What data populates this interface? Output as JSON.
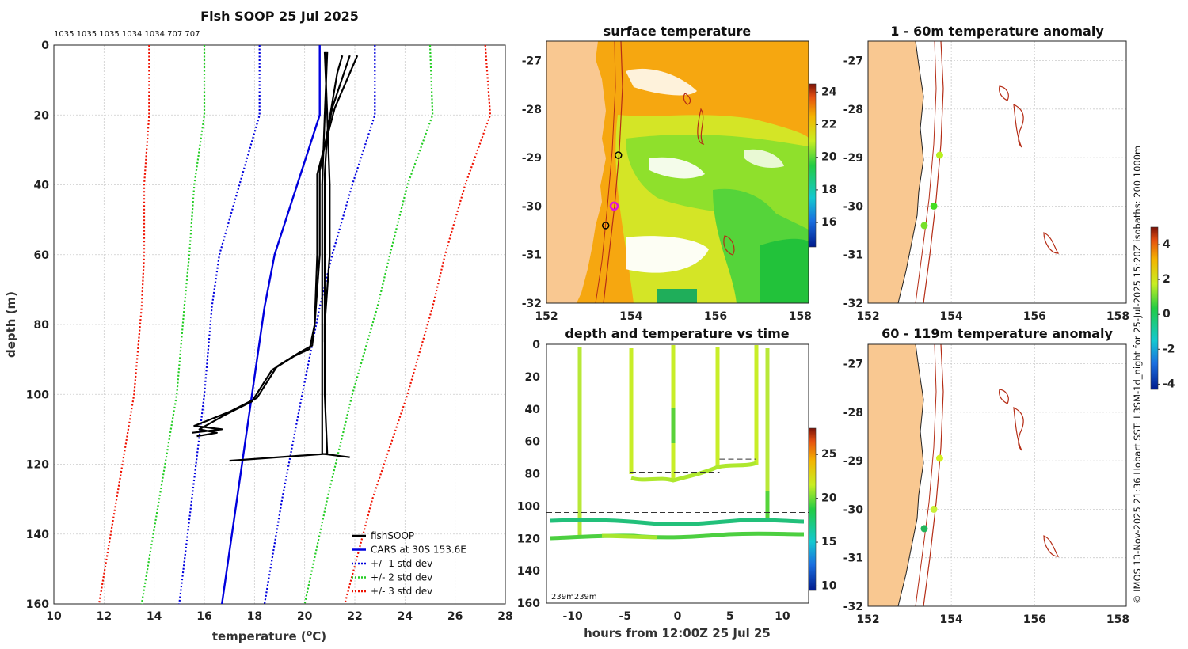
{
  "chart_data": [
    {
      "id": "profile",
      "type": "line",
      "title": "Fish SOOP 25 Jul 2025",
      "top_labels": "1035 1035 1035 1034 1034 707 707",
      "xlabel": "temperature (",
      "xlabel_sup": "o",
      "xlabel_end": "C)",
      "ylabel": "depth (m)",
      "xlim": [
        10,
        28
      ],
      "ylim": [
        0,
        160
      ],
      "xticks": [
        "10",
        "12",
        "14",
        "16",
        "18",
        "20",
        "22",
        "24",
        "26",
        "28"
      ],
      "yticks": [
        "0",
        "20",
        "40",
        "60",
        "80",
        "100",
        "120",
        "140",
        "160"
      ],
      "legend": [
        {
          "label": "fishSOOP",
          "color": "#000000",
          "style": "solid"
        },
        {
          "label": "CARS at 30S 153.6E",
          "color": "#0000dd",
          "style": "solid"
        },
        {
          "label": "+/- 1 std dev",
          "color": "#0000dd",
          "style": "dotted"
        },
        {
          "label": "+/- 2 std dev",
          "color": "#22cc22",
          "style": "dotted"
        },
        {
          "label": "+/- 3 std dev",
          "color": "#ee1100",
          "style": "dotted"
        }
      ],
      "series": [
        {
          "name": "CARS mean",
          "color": "#0000dd",
          "dash": "",
          "width": 2.4,
          "points": [
            [
              20.6,
              0
            ],
            [
              20.6,
              20
            ],
            [
              19.7,
              40
            ],
            [
              18.8,
              60
            ],
            [
              18.4,
              75
            ],
            [
              17.9,
              100
            ],
            [
              17.3,
              130
            ],
            [
              16.7,
              160
            ]
          ]
        },
        {
          "name": "+1 std",
          "color": "#0000dd",
          "dash": "2,2.5",
          "width": 2.2,
          "points": [
            [
              22.8,
              0
            ],
            [
              22.8,
              20
            ],
            [
              21.9,
              40
            ],
            [
              21.1,
              60
            ],
            [
              20.6,
              75
            ],
            [
              19.9,
              100
            ],
            [
              19.1,
              130
            ],
            [
              18.4,
              160
            ]
          ]
        },
        {
          "name": "-1 std",
          "color": "#0000dd",
          "dash": "2,2.5",
          "width": 2.2,
          "points": [
            [
              18.2,
              0
            ],
            [
              18.2,
              20
            ],
            [
              17.4,
              40
            ],
            [
              16.6,
              60
            ],
            [
              16.3,
              75
            ],
            [
              16.0,
              100
            ],
            [
              15.5,
              130
            ],
            [
              15.0,
              160
            ]
          ]
        },
        {
          "name": "+2 std",
          "color": "#22cc22",
          "dash": "2,2.5",
          "width": 2.2,
          "points": [
            [
              25.0,
              0
            ],
            [
              25.1,
              20
            ],
            [
              24.1,
              40
            ],
            [
              23.4,
              60
            ],
            [
              22.9,
              75
            ],
            [
              21.9,
              100
            ],
            [
              20.9,
              130
            ],
            [
              20.0,
              160
            ]
          ]
        },
        {
          "name": "-2 std",
          "color": "#22cc22",
          "dash": "2,2.5",
          "width": 2.2,
          "points": [
            [
              16.0,
              0
            ],
            [
              16.0,
              20
            ],
            [
              15.6,
              40
            ],
            [
              15.4,
              60
            ],
            [
              15.2,
              75
            ],
            [
              14.9,
              100
            ],
            [
              14.2,
              130
            ],
            [
              13.5,
              160
            ]
          ]
        },
        {
          "name": "+3 std",
          "color": "#ee1100",
          "dash": "2,2.5",
          "width": 2.2,
          "points": [
            [
              27.2,
              0
            ],
            [
              27.4,
              20
            ],
            [
              26.4,
              40
            ],
            [
              25.6,
              60
            ],
            [
              25.1,
              75
            ],
            [
              24.1,
              100
            ],
            [
              22.7,
              130
            ],
            [
              21.6,
              160
            ]
          ]
        },
        {
          "name": "-3 std",
          "color": "#ee1100",
          "dash": "2,2.5",
          "width": 2.2,
          "points": [
            [
              13.8,
              0
            ],
            [
              13.8,
              20
            ],
            [
              13.6,
              40
            ],
            [
              13.6,
              60
            ],
            [
              13.5,
              75
            ],
            [
              13.2,
              100
            ],
            [
              12.5,
              130
            ],
            [
              11.8,
              160
            ]
          ]
        },
        {
          "name": "fishSOOP cast 1",
          "color": "#000000",
          "dash": "",
          "width": 2.2,
          "points": [
            [
              21.5,
              3
            ],
            [
              21.3,
              8
            ],
            [
              20.9,
              25
            ],
            [
              20.8,
              37
            ],
            [
              20.8,
              60
            ],
            [
              20.8,
              80
            ],
            [
              20.8,
              100
            ],
            [
              20.9,
              117
            ],
            [
              17.0,
              119
            ]
          ]
        },
        {
          "name": "fishSOOP cast 2",
          "color": "#000000",
          "dash": "",
          "width": 2.2,
          "points": [
            [
              20.9,
              2
            ],
            [
              20.8,
              20
            ],
            [
              20.7,
              40
            ],
            [
              20.7,
              70
            ],
            [
              20.7,
              85
            ],
            [
              20.7,
              105
            ],
            [
              20.7,
              117
            ],
            [
              21.8,
              118
            ]
          ]
        },
        {
          "name": "fishSOOP cast 3",
          "color": "#000000",
          "dash": "",
          "width": 2.2,
          "points": [
            [
              22.1,
              3
            ],
            [
              21.2,
              18
            ],
            [
              20.5,
              37
            ],
            [
              20.5,
              60
            ],
            [
              20.4,
              80
            ],
            [
              20.3,
              86
            ],
            [
              19.8,
              88
            ],
            [
              18.9,
              92
            ],
            [
              18.1,
              101
            ],
            [
              17.0,
              105
            ],
            [
              15.6,
              109
            ],
            [
              16.7,
              110
            ],
            [
              15.5,
              111
            ]
          ]
        },
        {
          "name": "fishSOOP cast 4",
          "color": "#000000",
          "dash": "",
          "width": 2.2,
          "points": [
            [
              21.8,
              3
            ],
            [
              21.1,
              18
            ],
            [
              20.6,
              36
            ],
            [
              20.6,
              60
            ],
            [
              20.4,
              80
            ],
            [
              20.2,
              87
            ],
            [
              19.6,
              89
            ],
            [
              18.7,
              93
            ],
            [
              17.9,
              102
            ],
            [
              16.8,
              106
            ],
            [
              15.8,
              110
            ],
            [
              16.5,
              111
            ],
            [
              15.7,
              112
            ]
          ]
        },
        {
          "name": "fishSOOP cast 5",
          "color": "#000000",
          "dash": "",
          "width": 2.2,
          "points": [
            [
              20.8,
              2
            ],
            [
              20.9,
              20
            ],
            [
              21.0,
              40
            ],
            [
              21.0,
              60
            ],
            [
              20.8,
              80
            ],
            [
              20.8,
              85
            ]
          ]
        }
      ]
    },
    {
      "id": "sst",
      "type": "heatmap",
      "title": "surface temperature",
      "xlim": [
        152,
        158.2
      ],
      "ylim": [
        -32,
        -26.6
      ],
      "xticks": [
        "152",
        "154",
        "156",
        "158"
      ],
      "yticks": [
        "-27",
        "-28",
        "-29",
        "-30",
        "-31",
        "-32"
      ],
      "colorbar": {
        "range": [
          14.5,
          24.5
        ],
        "ticks": [
          "16",
          "18",
          "20",
          "22",
          "24"
        ]
      },
      "stations": [
        [
          153.7,
          -28.95
        ],
        [
          153.4,
          -30.4
        ]
      ],
      "current_station": [
        153.6,
        -30.0
      ]
    },
    {
      "id": "depthtime",
      "type": "scatter",
      "title": "depth and temperature vs time",
      "xlabel": "hours from 12:00Z 25 Jul 25",
      "xlim": [
        -12.5,
        12.5
      ],
      "ylim": [
        0,
        160
      ],
      "xticks": [
        "-10",
        "-5",
        "0",
        "5",
        "10"
      ],
      "yticks": [
        "0",
        "20",
        "40",
        "60",
        "80",
        "100",
        "120",
        "140",
        "160"
      ],
      "colorbar": {
        "range": [
          9.5,
          28
        ],
        "ticks": [
          "10",
          "15",
          "20",
          "25"
        ]
      },
      "annotation": "239m239m",
      "dashed_lines": [
        {
          "x": [
            -12.5,
            12.5
          ],
          "depth": 104
        },
        {
          "x": [
            -4.5,
            4
          ],
          "depth": 79
        },
        {
          "x": [
            4,
            7.5
          ],
          "depth": 71
        }
      ]
    },
    {
      "id": "anom_shallow",
      "type": "scatter",
      "title": "1 - 60m temperature anomaly",
      "xlim": [
        152,
        158.2
      ],
      "ylim": [
        -32,
        -26.6
      ],
      "xticks": [
        "152",
        "154",
        "156",
        "158"
      ],
      "yticks": [
        "-27",
        "-28",
        "-29",
        "-30",
        "-31",
        "-32"
      ],
      "points": [
        {
          "lon": 153.72,
          "lat": -28.95,
          "color": "#b8f020"
        },
        {
          "lon": 153.58,
          "lat": -30.0,
          "color": "#44dd22"
        },
        {
          "lon": 153.35,
          "lat": -30.4,
          "color": "#77e02a"
        }
      ]
    },
    {
      "id": "anom_deep",
      "type": "scatter",
      "title": "60 - 119m temperature anomaly",
      "xlim": [
        152,
        158.2
      ],
      "ylim": [
        -32,
        -26.6
      ],
      "xticks": [
        "152",
        "154",
        "156",
        "158"
      ],
      "yticks": [
        "-27",
        "-28",
        "-29",
        "-30",
        "-31",
        "-32"
      ],
      "points": [
        {
          "lon": 153.72,
          "lat": -28.95,
          "color": "#d4f020"
        },
        {
          "lon": 153.58,
          "lat": -30.0,
          "color": "#c8f038"
        },
        {
          "lon": 153.35,
          "lat": -30.4,
          "color": "#22b45a"
        }
      ]
    }
  ],
  "anomaly_colorbar": {
    "range": [
      -4.3,
      5
    ],
    "ticks": [
      "4",
      "2",
      "0",
      "-2",
      "-4"
    ]
  },
  "credit": "© IMOS 13-Nov-2025 21:36 Hobart SST: L3SM-1d_night for 25-Jul-2025 15:20Z isobaths: 200  1000m",
  "colors": {
    "land": "#f9c891",
    "isobath": "#b52d16",
    "grid": "#cccccc"
  }
}
